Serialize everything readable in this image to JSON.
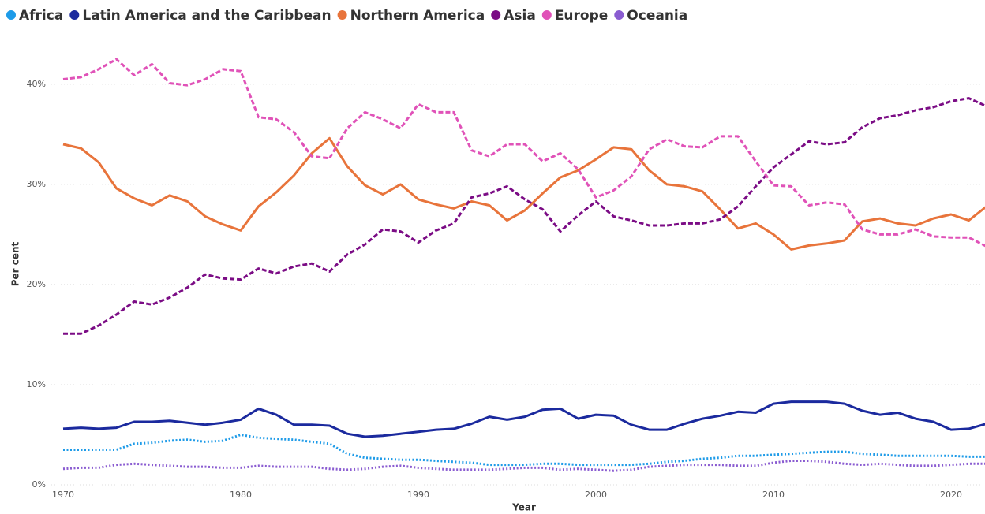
{
  "chart_data": {
    "type": "line",
    "xlabel": "Year",
    "ylabel": "Per cent",
    "legend": "top-left",
    "grid": true,
    "x": [
      1970,
      1971,
      1972,
      1973,
      1974,
      1975,
      1976,
      1977,
      1978,
      1979,
      1980,
      1981,
      1982,
      1983,
      1984,
      1985,
      1986,
      1987,
      1988,
      1989,
      1990,
      1991,
      1992,
      1993,
      1994,
      1995,
      1996,
      1997,
      1998,
      1999,
      2000,
      2001,
      2002,
      2003,
      2004,
      2005,
      2006,
      2007,
      2008,
      2009,
      2010,
      2011,
      2012,
      2013,
      2014,
      2015,
      2016,
      2017,
      2018,
      2019,
      2020,
      2021,
      2022
    ],
    "xlim": [
      1970,
      2022
    ],
    "xticks": [
      1970,
      1980,
      1990,
      2000,
      2010,
      2020
    ],
    "ylim": [
      0,
      44
    ],
    "yticks": [
      {
        "value": 0,
        "label": "0%"
      },
      {
        "value": 10,
        "label": "10%"
      },
      {
        "value": 20,
        "label": "20%"
      },
      {
        "value": 30,
        "label": "30%"
      },
      {
        "value": 40,
        "label": "40%"
      }
    ],
    "series": [
      {
        "name": "Africa",
        "color": "#1e9be8",
        "style": "dotted",
        "values": [
          3.5,
          3.5,
          3.5,
          3.5,
          4.1,
          4.2,
          4.4,
          4.5,
          4.3,
          4.4,
          5.0,
          4.7,
          4.6,
          4.5,
          4.3,
          4.1,
          3.1,
          2.7,
          2.6,
          2.5,
          2.5,
          2.4,
          2.3,
          2.2,
          2.0,
          2.0,
          2.0,
          2.1,
          2.1,
          2.0,
          2.0,
          2.0,
          2.0,
          2.1,
          2.3,
          2.4,
          2.6,
          2.7,
          2.9,
          2.9,
          3.0,
          3.1,
          3.2,
          3.3,
          3.3,
          3.1,
          3.0,
          2.9,
          2.9,
          2.9,
          2.9,
          2.8,
          2.8
        ]
      },
      {
        "name": "Latin America and the Caribbean",
        "color": "#1b2a9e",
        "style": "solid",
        "values": [
          5.6,
          5.7,
          5.6,
          5.7,
          6.3,
          6.3,
          6.4,
          6.2,
          6.0,
          6.2,
          6.5,
          7.6,
          7.0,
          6.0,
          6.0,
          5.9,
          5.1,
          4.8,
          4.9,
          5.1,
          5.3,
          5.5,
          5.6,
          6.1,
          6.8,
          6.5,
          6.8,
          7.5,
          7.6,
          6.6,
          7.0,
          6.9,
          6.0,
          5.5,
          5.5,
          6.1,
          6.6,
          6.9,
          7.3,
          7.2,
          8.1,
          8.3,
          8.3,
          8.3,
          8.1,
          7.4,
          7.0,
          7.2,
          6.6,
          6.3,
          5.5,
          5.6,
          6.1
        ]
      },
      {
        "name": "Northern America",
        "color": "#e8743b",
        "style": "solid",
        "values": [
          34.0,
          33.6,
          32.2,
          29.6,
          28.6,
          27.9,
          28.9,
          28.3,
          26.8,
          26.0,
          25.4,
          27.8,
          29.2,
          30.9,
          33.1,
          34.6,
          31.8,
          29.9,
          29.0,
          30.0,
          28.5,
          28.0,
          27.6,
          28.3,
          27.9,
          26.4,
          27.4,
          29.1,
          30.7,
          31.4,
          32.5,
          33.7,
          33.5,
          31.4,
          30.0,
          29.8,
          29.3,
          27.5,
          25.6,
          26.1,
          25.0,
          23.5,
          23.9,
          24.1,
          24.4,
          26.3,
          26.6,
          26.1,
          25.9,
          26.6,
          27.0,
          26.4,
          27.8
        ]
      },
      {
        "name": "Asia",
        "color": "#7b0c85",
        "style": "dashed",
        "values": [
          15.1,
          15.1,
          15.9,
          17.0,
          18.3,
          18.0,
          18.7,
          19.7,
          21.0,
          20.6,
          20.5,
          21.6,
          21.1,
          21.8,
          22.1,
          21.3,
          23.0,
          24.0,
          25.5,
          25.3,
          24.2,
          25.4,
          26.1,
          28.7,
          29.1,
          29.8,
          28.5,
          27.5,
          25.3,
          26.9,
          28.3,
          26.8,
          26.4,
          25.9,
          25.9,
          26.1,
          26.1,
          26.5,
          27.8,
          29.8,
          31.7,
          33.0,
          34.3,
          34.0,
          34.2,
          35.7,
          36.6,
          36.9,
          37.4,
          37.7,
          38.3,
          38.6,
          37.8
        ]
      },
      {
        "name": "Europe",
        "color": "#e052b8",
        "style": "dashed",
        "values": [
          40.5,
          40.7,
          41.5,
          42.5,
          40.9,
          42.0,
          40.1,
          39.9,
          40.5,
          41.5,
          41.3,
          36.7,
          36.5,
          35.2,
          32.8,
          32.6,
          35.6,
          37.2,
          36.5,
          35.6,
          38.0,
          37.2,
          37.2,
          33.4,
          32.8,
          34.0,
          34.0,
          32.3,
          33.1,
          31.5,
          28.7,
          29.4,
          30.8,
          33.5,
          34.5,
          33.8,
          33.7,
          34.8,
          34.8,
          32.3,
          29.9,
          29.8,
          27.9,
          28.2,
          28.0,
          25.5,
          25.0,
          25.0,
          25.5,
          24.8,
          24.7,
          24.7,
          23.8
        ]
      },
      {
        "name": "Oceania",
        "color": "#8a5cd1",
        "style": "dotted",
        "values": [
          1.6,
          1.7,
          1.7,
          2.0,
          2.1,
          2.0,
          1.9,
          1.8,
          1.8,
          1.7,
          1.7,
          1.9,
          1.8,
          1.8,
          1.8,
          1.6,
          1.5,
          1.6,
          1.8,
          1.9,
          1.7,
          1.6,
          1.5,
          1.5,
          1.5,
          1.6,
          1.7,
          1.7,
          1.5,
          1.6,
          1.5,
          1.4,
          1.5,
          1.8,
          1.9,
          2.0,
          2.0,
          2.0,
          1.9,
          1.9,
          2.2,
          2.4,
          2.4,
          2.3,
          2.1,
          2.0,
          2.1,
          2.0,
          1.9,
          1.9,
          2.0,
          2.1,
          2.1
        ]
      }
    ]
  }
}
